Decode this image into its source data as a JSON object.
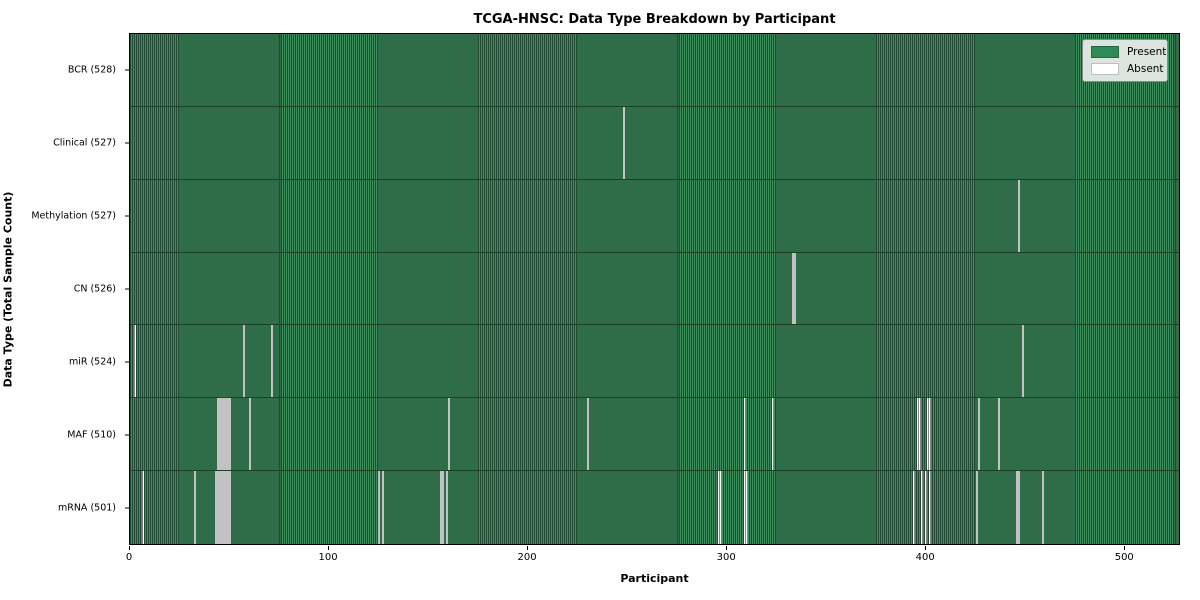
{
  "title": "TCGA-HNSC: Data Type Breakdown by Participant",
  "colors": {
    "present": "#2e8b57",
    "present_light": "#3e8e5e",
    "absent": "#ffffff",
    "cell_edge": "rgba(0,0,0,0.48)",
    "legend_bg": "#ebeeeb",
    "legend_border": "#8a8a8a"
  },
  "legend": {
    "position": "upper-right",
    "items": [
      {
        "label": "Present",
        "color": "#2e8b57"
      },
      {
        "label": "Absent",
        "color": "#ffffff"
      }
    ]
  },
  "chart_data": {
    "type": "heatmap",
    "title": "TCGA-HNSC: Data Type Breakdown by Participant",
    "xlabel": "Participant",
    "ylabel": "Data Type (Total Sample Count)",
    "n_participants": 528,
    "x_ticks": [
      0,
      100,
      200,
      300,
      400,
      500
    ],
    "xlim": [
      0,
      528
    ],
    "grid": false,
    "legend_entries": [
      "Present",
      "Absent"
    ],
    "rows": [
      {
        "data_type": "BCR",
        "label": "BCR (528)",
        "present_count": 528,
        "absent_count": 0,
        "absent_participants": []
      },
      {
        "data_type": "Clinical",
        "label": "Clinical (527)",
        "present_count": 527,
        "absent_count": 1,
        "absent_participants": [
          248
        ]
      },
      {
        "data_type": "Methylation",
        "label": "Methylation (527)",
        "present_count": 527,
        "absent_count": 1,
        "absent_participants": [
          447
        ]
      },
      {
        "data_type": "CN",
        "label": "CN (526)",
        "present_count": 526,
        "absent_count": 2,
        "absent_participants": [
          333,
          334
        ]
      },
      {
        "data_type": "miR",
        "label": "miR (524)",
        "present_count": 524,
        "absent_count": 4,
        "absent_participants": [
          2,
          57,
          71,
          449
        ]
      },
      {
        "data_type": "MAF",
        "label": "MAF (510)",
        "present_count": 510,
        "absent_count": 18,
        "absent_participants": [
          44,
          45,
          46,
          47,
          48,
          49,
          50,
          60,
          160,
          230,
          309,
          323,
          396,
          397,
          401,
          402,
          427,
          437
        ]
      },
      {
        "data_type": "mRNA",
        "label": "mRNA (501)",
        "present_count": 501,
        "absent_count": 27,
        "absent_participants": [
          6,
          32,
          43,
          44,
          45,
          46,
          47,
          48,
          49,
          50,
          125,
          127,
          156,
          157,
          159,
          296,
          297,
          309,
          310,
          394,
          398,
          400,
          402,
          426,
          446,
          447,
          459
        ]
      }
    ]
  }
}
